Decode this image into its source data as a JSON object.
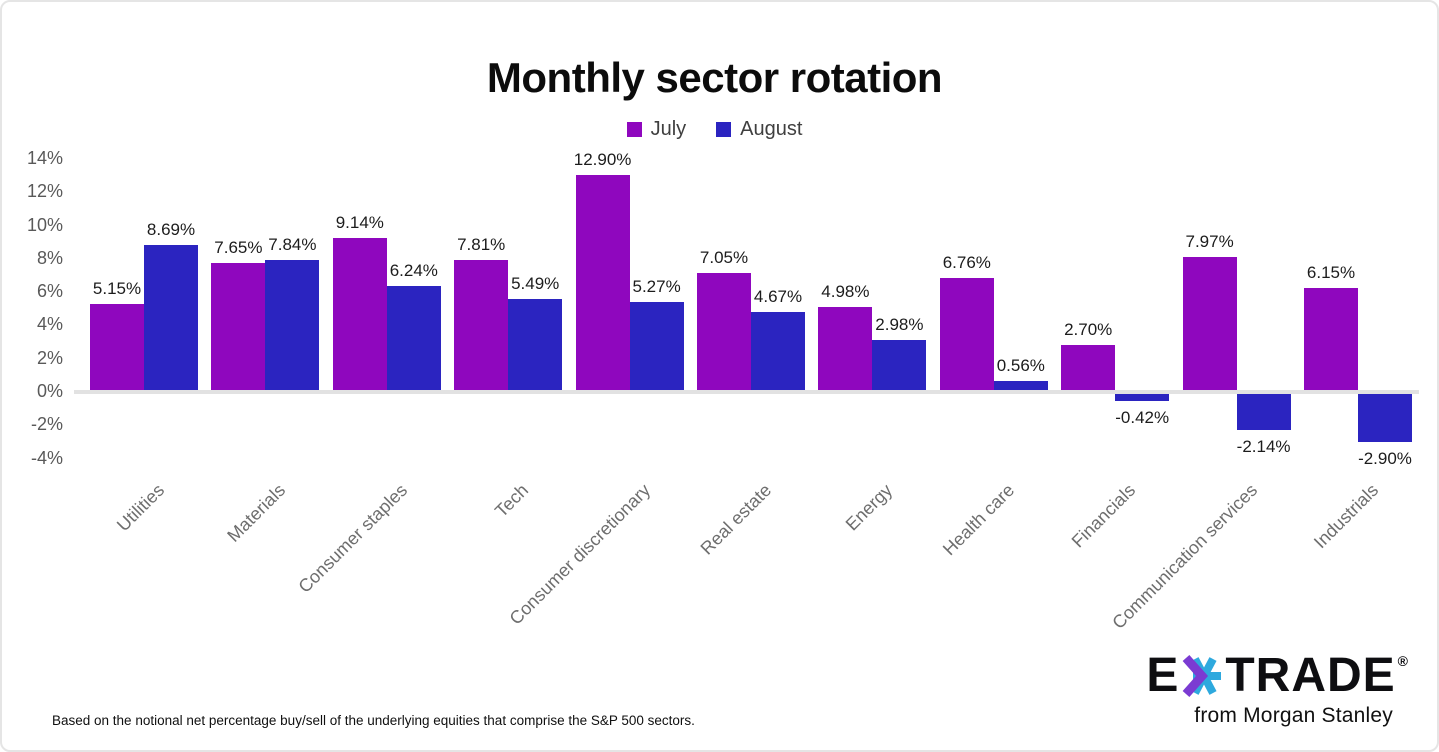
{
  "title": "Monthly sector rotation",
  "legend": {
    "july_label": "July",
    "august_label": "August"
  },
  "colors": {
    "july": "#8f07be",
    "august": "#2b24c0",
    "zero_line": "#e2e2e2",
    "star_purple": "#7b3bd2",
    "star_cyan": "#2ea9de"
  },
  "chart_data": {
    "type": "bar",
    "title": "Monthly sector rotation",
    "categories": [
      "Utilities",
      "Materials",
      "Consumer staples",
      "Tech",
      "Consumer discretionary",
      "Real estate",
      "Energy",
      "Health care",
      "Financials",
      "Communication services",
      "Industrials"
    ],
    "series": [
      {
        "name": "July",
        "color": "#8f07be",
        "values": [
          5.15,
          7.65,
          9.14,
          7.81,
          12.9,
          7.05,
          4.98,
          6.76,
          2.7,
          7.97,
          6.15
        ]
      },
      {
        "name": "August",
        "color": "#2b24c0",
        "values": [
          8.69,
          7.84,
          6.24,
          5.49,
          5.27,
          4.67,
          2.98,
          0.56,
          -0.42,
          -2.14,
          -2.9
        ]
      }
    ],
    "xlabel": "",
    "ylabel": "",
    "ylim": [
      -4,
      14
    ],
    "yticks": [
      {
        "label": "14%",
        "value": 14
      },
      {
        "label": "12%",
        "value": 12
      },
      {
        "label": "10%",
        "value": 10
      },
      {
        "label": "8%",
        "value": 8
      },
      {
        "label": "6%",
        "value": 6
      },
      {
        "label": "4%",
        "value": 4
      },
      {
        "label": "2%",
        "value": 2
      },
      {
        "label": "0%",
        "value": 0
      },
      {
        "label": "-2%",
        "value": -2
      },
      {
        "label": "-4%",
        "value": -4
      }
    ],
    "grid": false,
    "legend_position": "top",
    "value_label_format": "0.00%"
  },
  "footnote": "Based on the notional net percentage buy/sell of the underlying equities that comprise the S&P 500 sectors.",
  "logo": {
    "brand_e": "E",
    "brand_trade": "TRADE",
    "registered": "®",
    "tagline": "from Morgan Stanley"
  }
}
